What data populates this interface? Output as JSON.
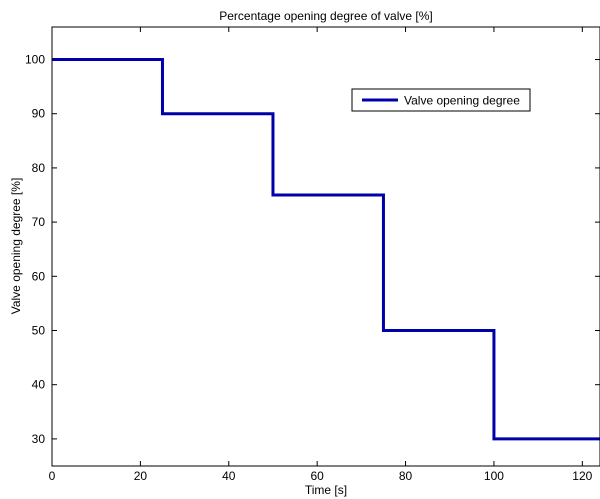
{
  "chart_data": {
    "type": "line",
    "title": "Percentage opening degree of valve [%]",
    "xlabel": "Time [s]",
    "ylabel": "Valve opening degree [%]",
    "xlim": [
      0,
      124
    ],
    "ylim": [
      25,
      106
    ],
    "xticks": [
      0,
      20,
      40,
      60,
      80,
      100,
      120
    ],
    "yticks": [
      30,
      40,
      50,
      60,
      70,
      80,
      90,
      100
    ],
    "grid": false,
    "legend_position": "top-right",
    "series": [
      {
        "name": "Valve opening degree",
        "color": "#0000aa",
        "x": [
          0,
          25,
          25,
          50,
          50,
          75,
          75,
          100,
          100,
          124
        ],
        "y": [
          100,
          100,
          90,
          90,
          75,
          75,
          50,
          50,
          30,
          30
        ]
      }
    ]
  }
}
